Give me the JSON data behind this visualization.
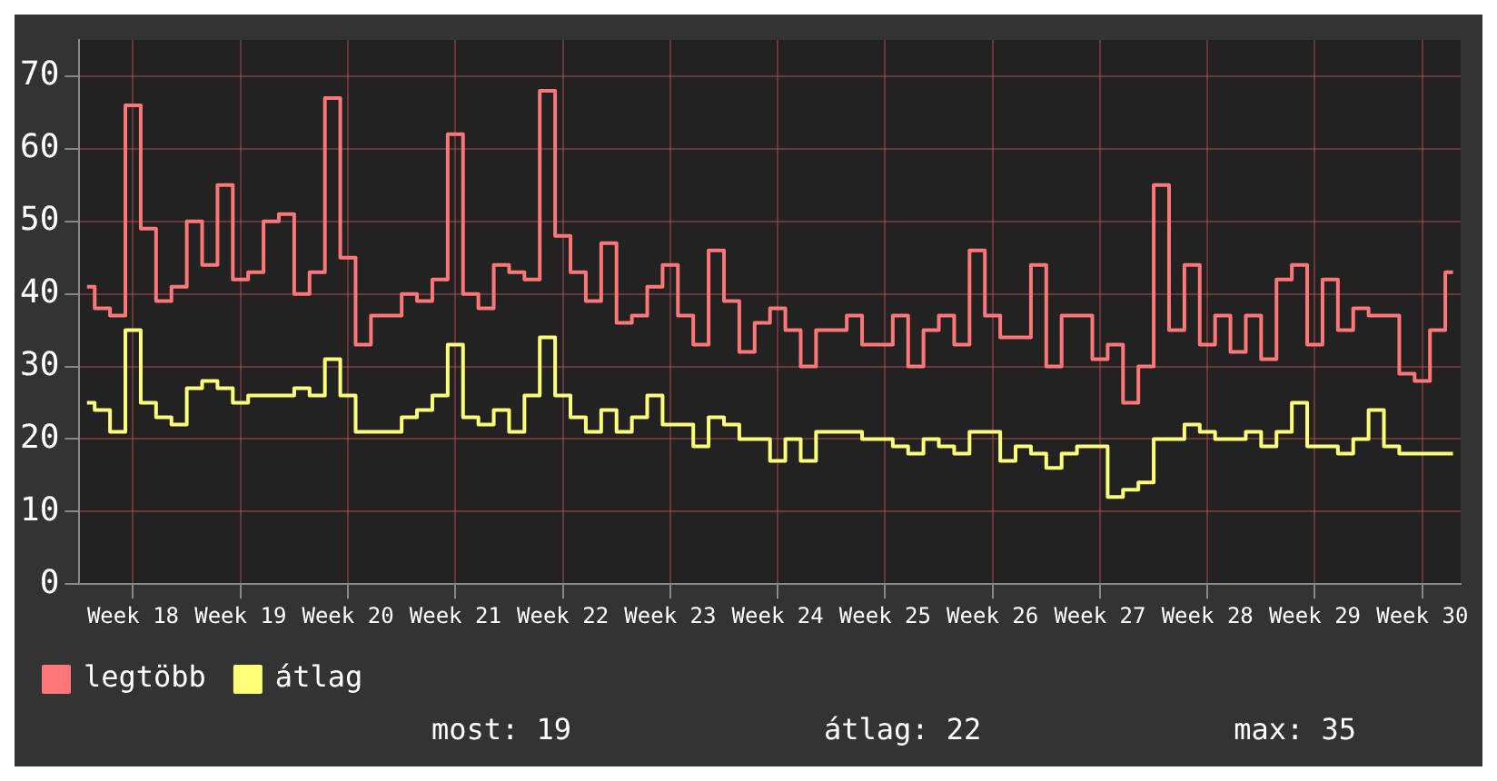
{
  "chart_data": {
    "type": "step",
    "categories": [
      null,
      null,
      null,
      "Week 18",
      null,
      null,
      null,
      null,
      null,
      null,
      "Week 19",
      null,
      null,
      null,
      null,
      null,
      null,
      "Week 20",
      null,
      null,
      null,
      null,
      null,
      null,
      "Week 21",
      null,
      null,
      null,
      null,
      null,
      null,
      "Week 22",
      null,
      null,
      null,
      null,
      null,
      null,
      "Week 23",
      null,
      null,
      null,
      null,
      null,
      null,
      "Week 24",
      null,
      null,
      null,
      null,
      null,
      null,
      "Week 25",
      null,
      null,
      null,
      null,
      null,
      null,
      "Week 26",
      null,
      null,
      null,
      null,
      null,
      null,
      "Week 27",
      null,
      null,
      null,
      null,
      null,
      null,
      "Week 28",
      null,
      null,
      null,
      null,
      null,
      null,
      "Week 29",
      null,
      null,
      null,
      null,
      null,
      null,
      "Week 30",
      null,
      null
    ],
    "series": [
      {
        "name": "legtöbb",
        "color": "#ff7777",
        "values": [
          41,
          38,
          37,
          66,
          49,
          39,
          41,
          50,
          44,
          55,
          42,
          43,
          50,
          51,
          40,
          43,
          67,
          45,
          33,
          37,
          37,
          40,
          39,
          42,
          62,
          40,
          38,
          44,
          43,
          42,
          68,
          48,
          43,
          39,
          47,
          36,
          37,
          41,
          44,
          37,
          33,
          46,
          39,
          32,
          36,
          38,
          35,
          30,
          35,
          35,
          37,
          33,
          33,
          37,
          30,
          35,
          37,
          33,
          46,
          37,
          34,
          34,
          44,
          30,
          37,
          37,
          31,
          33,
          25,
          30,
          55,
          35,
          44,
          33,
          37,
          32,
          37,
          31,
          42,
          44,
          33,
          42,
          35,
          38,
          37,
          37,
          29,
          28,
          35,
          43
        ]
      },
      {
        "name": "átlag",
        "color": "#ffff77",
        "values": [
          25,
          24,
          21,
          35,
          25,
          23,
          22,
          27,
          28,
          27,
          25,
          26,
          26,
          26,
          27,
          26,
          31,
          26,
          21,
          21,
          21,
          23,
          24,
          26,
          33,
          23,
          22,
          24,
          21,
          26,
          34,
          26,
          23,
          21,
          24,
          21,
          23,
          26,
          22,
          22,
          19,
          23,
          22,
          20,
          20,
          17,
          20,
          17,
          21,
          21,
          21,
          20,
          20,
          19,
          18,
          20,
          19,
          18,
          21,
          21,
          17,
          19,
          18,
          16,
          18,
          19,
          19,
          12,
          13,
          14,
          20,
          20,
          22,
          21,
          20,
          20,
          21,
          19,
          21,
          25,
          19,
          19,
          18,
          20,
          24,
          19,
          18,
          18,
          18,
          18
        ]
      }
    ],
    "ylim": [
      0,
      75
    ],
    "yticks": [
      0,
      10,
      20,
      30,
      40,
      50,
      60,
      70
    ],
    "grid": true,
    "legend": "bottom left",
    "annotations": [
      "most: 19",
      "átlag: 22",
      "max: 35"
    ]
  }
}
